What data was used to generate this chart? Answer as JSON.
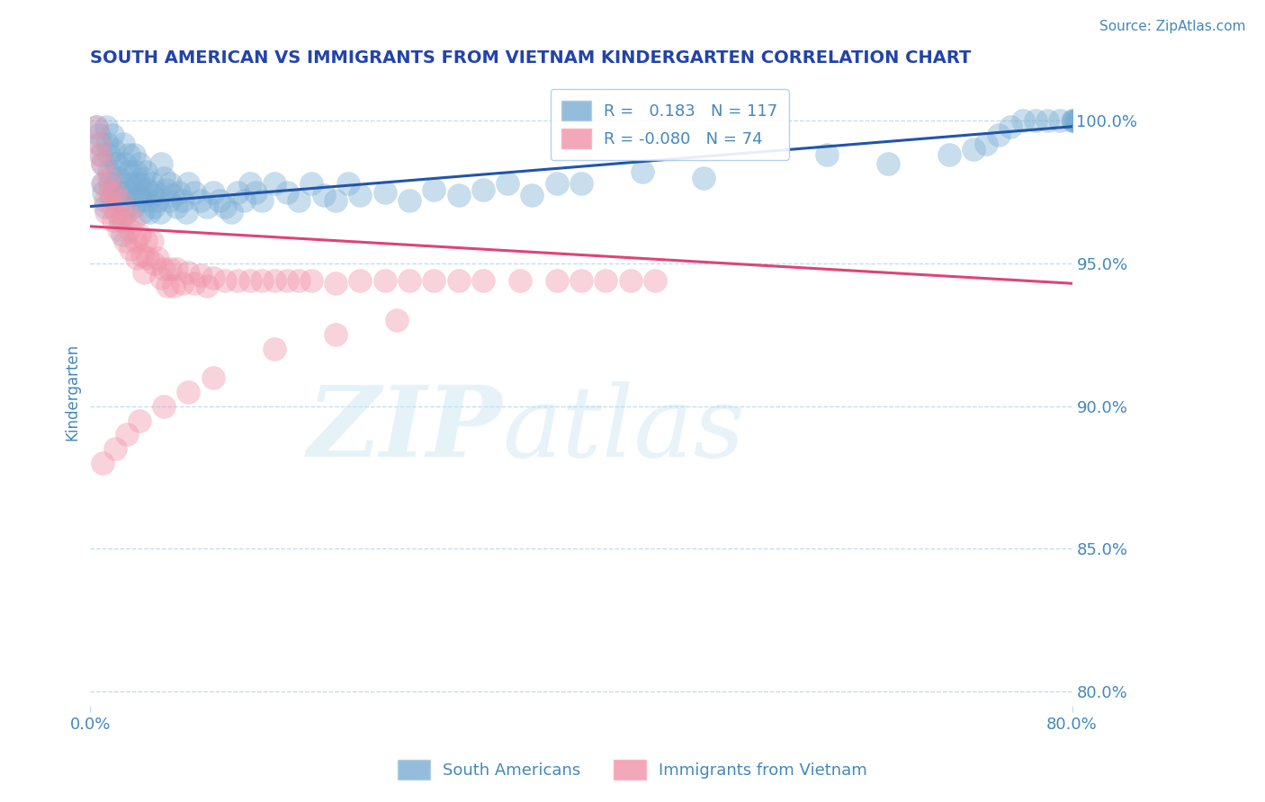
{
  "title": "SOUTH AMERICAN VS IMMIGRANTS FROM VIETNAM KINDERGARTEN CORRELATION CHART",
  "source": "Source: ZipAtlas.com",
  "ylabel": "Kindergarten",
  "ytick_labels": [
    "100.0%",
    "95.0%",
    "90.0%",
    "85.0%",
    "80.0%"
  ],
  "ytick_values": [
    1.0,
    0.95,
    0.9,
    0.85,
    0.8
  ],
  "xmin": 0.0,
  "xmax": 0.8,
  "ymin": 0.795,
  "ymax": 1.015,
  "blue_R": 0.183,
  "blue_N": 117,
  "pink_R": -0.08,
  "pink_N": 74,
  "blue_color": "#7AADD4",
  "pink_color": "#F093A8",
  "blue_line_color": "#2255AA",
  "pink_line_color": "#DD4477",
  "axis_color": "#4488BB",
  "grid_color": "#BBDDEE",
  "title_color": "#2244AA",
  "legend_label_blue": "South Americans",
  "legend_label_pink": "Immigrants from Vietnam",
  "blue_trend_x0": 0.0,
  "blue_trend_y0": 0.97,
  "blue_trend_x1": 0.8,
  "blue_trend_y1": 0.998,
  "pink_trend_x0": 0.0,
  "pink_trend_y0": 0.963,
  "pink_trend_x1": 0.8,
  "pink_trend_y1": 0.943,
  "blue_scatter_x": [
    0.005,
    0.007,
    0.008,
    0.009,
    0.01,
    0.01,
    0.011,
    0.012,
    0.013,
    0.014,
    0.015,
    0.015,
    0.016,
    0.017,
    0.018,
    0.019,
    0.02,
    0.02,
    0.021,
    0.022,
    0.023,
    0.024,
    0.025,
    0.025,
    0.026,
    0.027,
    0.028,
    0.029,
    0.03,
    0.03,
    0.031,
    0.032,
    0.033,
    0.034,
    0.035,
    0.036,
    0.037,
    0.038,
    0.039,
    0.04,
    0.04,
    0.041,
    0.042,
    0.043,
    0.044,
    0.045,
    0.046,
    0.047,
    0.048,
    0.05,
    0.051,
    0.052,
    0.053,
    0.055,
    0.057,
    0.058,
    0.06,
    0.062,
    0.064,
    0.065,
    0.067,
    0.07,
    0.072,
    0.075,
    0.078,
    0.08,
    0.085,
    0.09,
    0.095,
    0.1,
    0.105,
    0.11,
    0.115,
    0.12,
    0.125,
    0.13,
    0.135,
    0.14,
    0.15,
    0.16,
    0.17,
    0.18,
    0.19,
    0.2,
    0.21,
    0.22,
    0.24,
    0.26,
    0.28,
    0.3,
    0.32,
    0.34,
    0.36,
    0.38,
    0.4,
    0.45,
    0.5,
    0.6,
    0.65,
    0.7,
    0.72,
    0.73,
    0.74,
    0.75,
    0.76,
    0.77,
    0.78,
    0.79,
    0.8,
    0.801,
    0.802,
    0.803,
    0.804,
    0.805,
    0.806,
    0.807,
    0.808
  ],
  "blue_scatter_y": [
    0.998,
    0.995,
    0.992,
    0.988,
    0.985,
    0.978,
    0.975,
    0.97,
    0.998,
    0.992,
    0.988,
    0.982,
    0.978,
    0.973,
    0.995,
    0.99,
    0.985,
    0.978,
    0.974,
    0.985,
    0.98,
    0.975,
    0.972,
    0.965,
    0.96,
    0.992,
    0.985,
    0.978,
    0.975,
    0.97,
    0.988,
    0.982,
    0.978,
    0.974,
    0.97,
    0.988,
    0.982,
    0.978,
    0.974,
    0.985,
    0.978,
    0.972,
    0.968,
    0.98,
    0.975,
    0.982,
    0.976,
    0.972,
    0.968,
    0.978,
    0.974,
    0.97,
    0.975,
    0.972,
    0.968,
    0.985,
    0.98,
    0.976,
    0.972,
    0.978,
    0.974,
    0.97,
    0.975,
    0.972,
    0.968,
    0.978,
    0.975,
    0.972,
    0.97,
    0.975,
    0.972,
    0.97,
    0.968,
    0.975,
    0.972,
    0.978,
    0.975,
    0.972,
    0.978,
    0.975,
    0.972,
    0.978,
    0.974,
    0.972,
    0.978,
    0.974,
    0.975,
    0.972,
    0.976,
    0.974,
    0.976,
    0.978,
    0.974,
    0.978,
    0.978,
    0.982,
    0.98,
    0.988,
    0.985,
    0.988,
    0.99,
    0.992,
    0.995,
    0.998,
    1.0,
    1.0,
    1.0,
    1.0,
    1.0,
    1.0,
    1.0,
    1.0,
    1.0,
    1.0,
    1.0,
    1.0,
    1.0
  ],
  "pink_scatter_x": [
    0.005,
    0.007,
    0.008,
    0.01,
    0.011,
    0.012,
    0.013,
    0.015,
    0.016,
    0.018,
    0.019,
    0.02,
    0.022,
    0.023,
    0.025,
    0.027,
    0.028,
    0.03,
    0.032,
    0.033,
    0.035,
    0.037,
    0.038,
    0.04,
    0.042,
    0.044,
    0.045,
    0.047,
    0.05,
    0.052,
    0.055,
    0.058,
    0.06,
    0.063,
    0.065,
    0.068,
    0.07,
    0.075,
    0.08,
    0.085,
    0.09,
    0.095,
    0.1,
    0.11,
    0.12,
    0.13,
    0.14,
    0.15,
    0.16,
    0.17,
    0.18,
    0.2,
    0.22,
    0.24,
    0.26,
    0.28,
    0.3,
    0.32,
    0.35,
    0.38,
    0.4,
    0.42,
    0.44,
    0.46,
    0.25,
    0.2,
    0.15,
    0.1,
    0.08,
    0.06,
    0.04,
    0.03,
    0.02,
    0.01
  ],
  "pink_scatter_y": [
    0.998,
    0.992,
    0.988,
    0.985,
    0.978,
    0.972,
    0.968,
    0.98,
    0.975,
    0.97,
    0.965,
    0.975,
    0.968,
    0.962,
    0.972,
    0.965,
    0.958,
    0.968,
    0.962,
    0.955,
    0.965,
    0.958,
    0.952,
    0.96,
    0.953,
    0.947,
    0.958,
    0.952,
    0.958,
    0.95,
    0.952,
    0.945,
    0.948,
    0.942,
    0.948,
    0.942,
    0.948,
    0.943,
    0.947,
    0.943,
    0.946,
    0.942,
    0.945,
    0.944,
    0.944,
    0.944,
    0.944,
    0.944,
    0.944,
    0.944,
    0.944,
    0.943,
    0.944,
    0.944,
    0.944,
    0.944,
    0.944,
    0.944,
    0.944,
    0.944,
    0.944,
    0.944,
    0.944,
    0.944,
    0.93,
    0.925,
    0.92,
    0.91,
    0.905,
    0.9,
    0.895,
    0.89,
    0.885,
    0.88
  ]
}
